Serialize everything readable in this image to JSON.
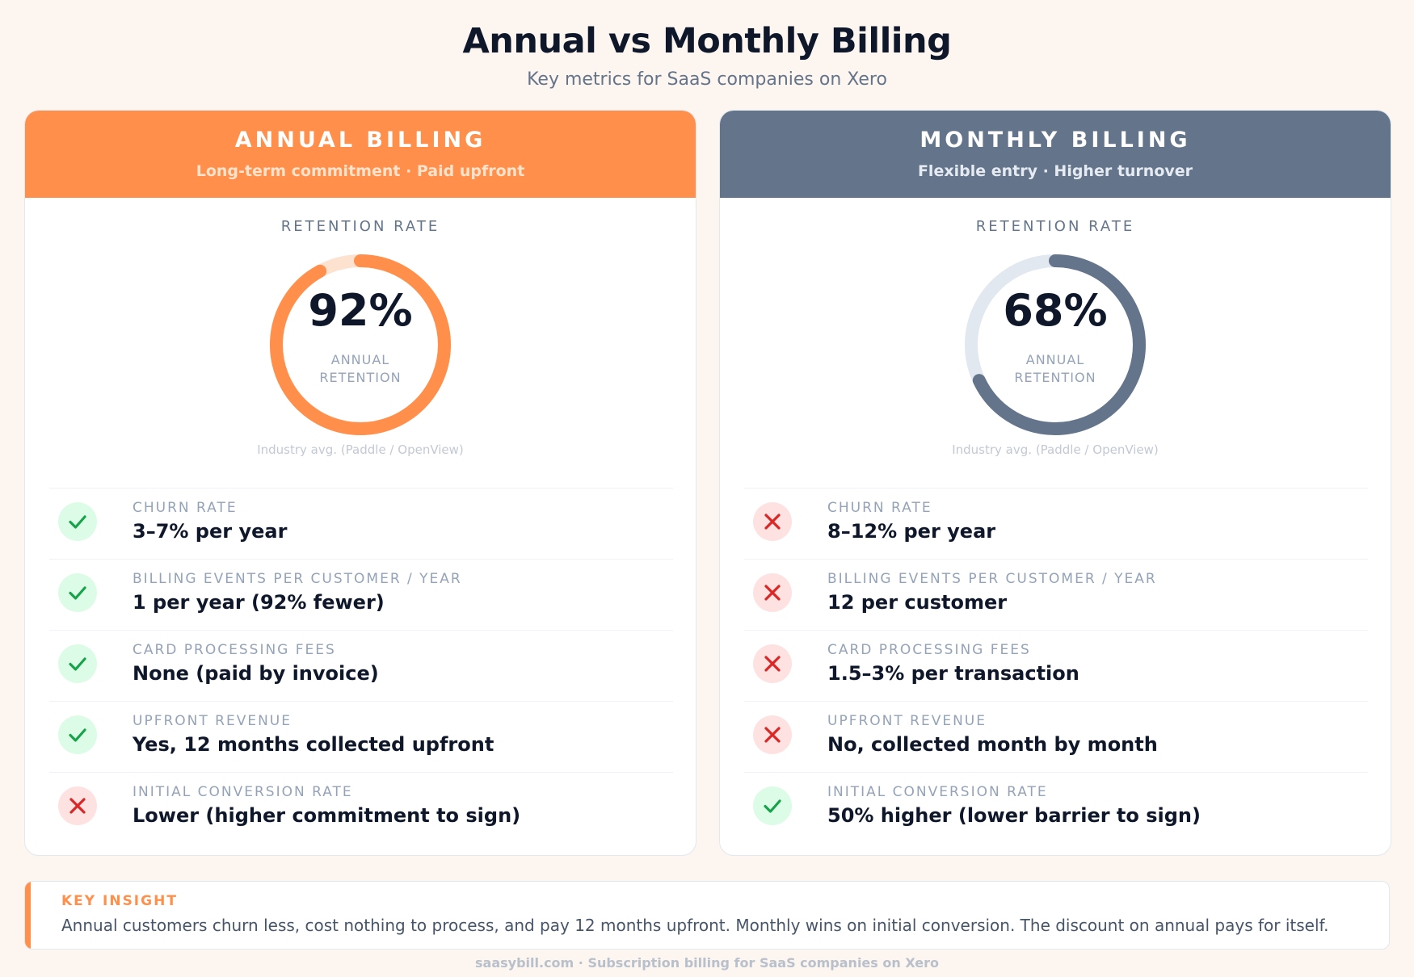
{
  "header": {
    "title": "Annual vs Monthly Billing",
    "subtitle": "Key metrics for SaaS companies on Xero"
  },
  "colors": {
    "annual_accent": "#ff8f4a",
    "annual_track": "#fde2d0",
    "monthly_accent": "#64748b",
    "monthly_track": "#e2e8f0",
    "good": "#16a34a",
    "bad": "#dc2626"
  },
  "annual": {
    "title": "ANNUAL BILLING",
    "subtitle": "Long-term commitment · Paid upfront",
    "retention_label": "RETENTION RATE",
    "retention_value": "92%",
    "retention_fraction": 0.92,
    "ring_caption_1": "ANNUAL",
    "ring_caption_2": "RETENTION",
    "source": "Industry avg. (Paddle / OpenView)",
    "metrics": [
      {
        "label": "CHURN RATE",
        "value": "3–7% per year",
        "status": "good",
        "icon": "check-icon"
      },
      {
        "label": "BILLING EVENTS PER CUSTOMER / YEAR",
        "value": "1 per year (92% fewer)",
        "status": "good",
        "icon": "check-icon"
      },
      {
        "label": "CARD PROCESSING FEES",
        "value": "None (paid by invoice)",
        "status": "good",
        "icon": "check-icon"
      },
      {
        "label": "UPFRONT REVENUE",
        "value": "Yes, 12 months collected upfront",
        "status": "good",
        "icon": "check-icon"
      },
      {
        "label": "INITIAL CONVERSION RATE",
        "value": "Lower (higher commitment to sign)",
        "status": "bad",
        "icon": "cross-icon"
      }
    ]
  },
  "monthly": {
    "title": "MONTHLY BILLING",
    "subtitle": "Flexible entry · Higher turnover",
    "retention_label": "RETENTION RATE",
    "retention_value": "68%",
    "retention_fraction": 0.68,
    "ring_caption_1": "ANNUAL",
    "ring_caption_2": "RETENTION",
    "source": "Industry avg. (Paddle / OpenView)",
    "metrics": [
      {
        "label": "CHURN RATE",
        "value": "8–12% per year",
        "status": "bad",
        "icon": "cross-icon"
      },
      {
        "label": "BILLING EVENTS PER CUSTOMER / YEAR",
        "value": "12 per customer",
        "status": "bad",
        "icon": "cross-icon"
      },
      {
        "label": "CARD PROCESSING FEES",
        "value": "1.5–3% per transaction",
        "status": "bad",
        "icon": "cross-icon"
      },
      {
        "label": "UPFRONT REVENUE",
        "value": "No, collected month by month",
        "status": "bad",
        "icon": "cross-icon"
      },
      {
        "label": "INITIAL CONVERSION RATE",
        "value": "50% higher (lower barrier to sign)",
        "status": "good",
        "icon": "check-icon"
      }
    ]
  },
  "insight": {
    "label": "KEY INSIGHT",
    "text": "Annual customers churn less, cost nothing to process, and pay 12 months upfront. Monthly wins on initial conversion. The discount on annual pays for itself."
  },
  "footer": {
    "text": "saasybill.com · Subscription billing for SaaS companies on Xero"
  }
}
